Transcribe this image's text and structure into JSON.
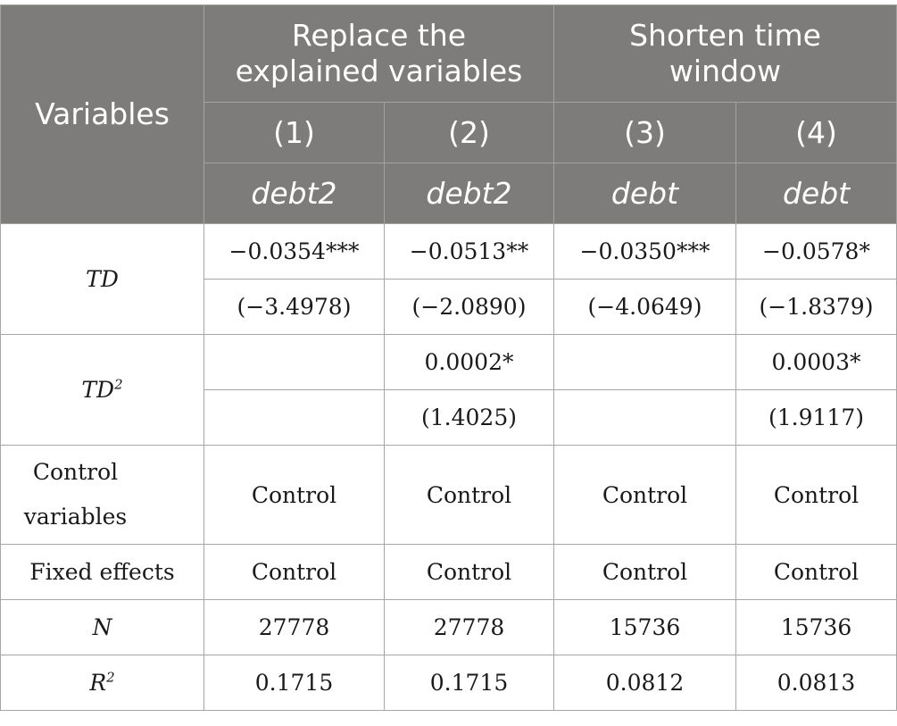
{
  "header": {
    "variables_label": "Variables",
    "group1": "Replace the explained variables",
    "group2": "Shorten time window",
    "columns": [
      "(1)",
      "(2)",
      "(3)",
      "(4)"
    ],
    "dependent": [
      "debt2",
      "debt2",
      "debt",
      "debt"
    ]
  },
  "rows": {
    "td": {
      "label": "TD",
      "coef": [
        "−0.0354***",
        "−0.0513**",
        "−0.0350***",
        "−0.0578*"
      ],
      "t": [
        "(−3.4978)",
        "(−2.0890)",
        "(−4.0649)",
        "(−1.8379)"
      ]
    },
    "td2": {
      "label": "TD",
      "sup": "2",
      "coef": [
        "",
        "0.0002*",
        "",
        "0.0003*"
      ],
      "t": [
        "",
        "(1.4025)",
        "",
        "(1.9117)"
      ]
    },
    "controls": {
      "label": "Control variables",
      "values": [
        "Control",
        "Control",
        "Control",
        "Control"
      ]
    },
    "fixed": {
      "label": "Fixed effects",
      "values": [
        "Control",
        "Control",
        "Control",
        "Control"
      ]
    },
    "n": {
      "label": "N",
      "values": [
        "27778",
        "27778",
        "15736",
        "15736"
      ]
    },
    "r2": {
      "label": "R",
      "sup": "2",
      "values": [
        "0.1715",
        "0.1715",
        "0.0812",
        "0.0813"
      ]
    }
  }
}
